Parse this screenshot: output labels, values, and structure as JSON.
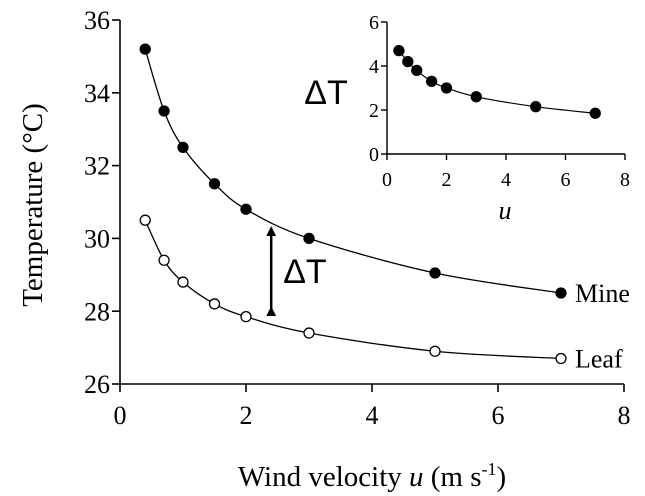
{
  "chart_data": [
    {
      "type": "scatter",
      "xlabel_main": "Wind velocity ",
      "xlabel_var": "u",
      "xlabel_unit": " (m s",
      "xlabel_sup": "-1",
      "xlabel_close": ")",
      "ylabel": "Temperature (°C)",
      "xlim": [
        0,
        8
      ],
      "ylim": [
        26,
        36
      ],
      "xticks": [
        "0",
        "2",
        "4",
        "6",
        "8"
      ],
      "yticks": [
        "26",
        "28",
        "30",
        "32",
        "34",
        "36"
      ],
      "grid": false,
      "series": [
        {
          "name": "Mine",
          "marker": "filled-circle",
          "x": [
            0.4,
            0.7,
            1.0,
            1.5,
            2.0,
            3.0,
            5.0,
            7.0
          ],
          "y": [
            35.2,
            33.5,
            32.5,
            31.5,
            30.8,
            30.0,
            29.05,
            28.5
          ]
        },
        {
          "name": "Leaf",
          "marker": "open-circle",
          "x": [
            0.4,
            0.7,
            1.0,
            1.5,
            2.0,
            3.0,
            5.0,
            7.0
          ],
          "y": [
            30.5,
            29.4,
            28.8,
            28.2,
            27.85,
            27.4,
            26.9,
            26.7
          ]
        }
      ],
      "annotation": {
        "label": "ΔT",
        "at_x": 2.4,
        "from_y": 28.0,
        "to_y": 30.2
      }
    },
    {
      "type": "scatter",
      "inset": true,
      "xlabel": "u",
      "ylabel": "ΔT",
      "xlim": [
        0,
        8
      ],
      "ylim": [
        0,
        6
      ],
      "xticks": [
        "0",
        "2",
        "4",
        "6",
        "8"
      ],
      "yticks": [
        "0",
        "2",
        "4",
        "6"
      ],
      "grid": false,
      "series": [
        {
          "marker": "filled-circle",
          "x": [
            0.4,
            0.7,
            1.0,
            1.5,
            2.0,
            3.0,
            5.0,
            7.0
          ],
          "y": [
            4.7,
            4.2,
            3.8,
            3.3,
            3.0,
            2.6,
            2.15,
            1.85
          ]
        }
      ]
    }
  ]
}
